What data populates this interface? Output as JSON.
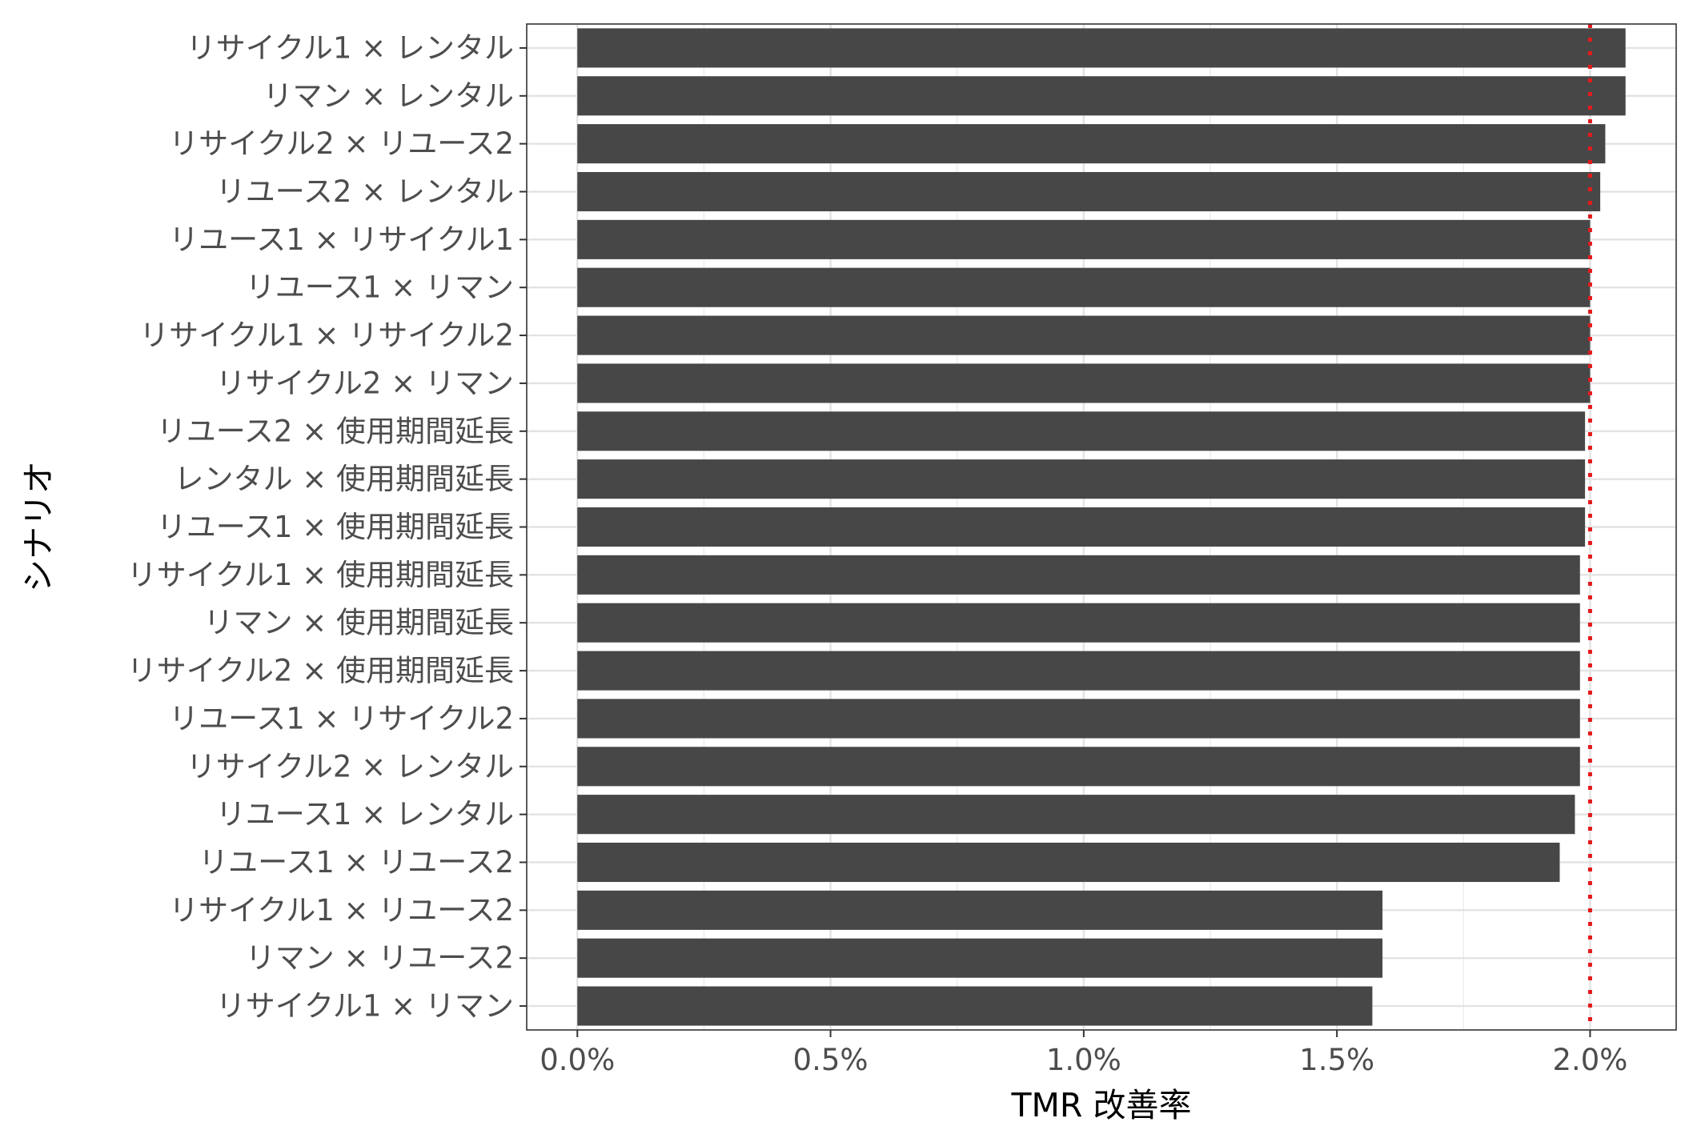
{
  "chart_data": {
    "type": "bar",
    "orientation": "horizontal",
    "xlabel": "TMR 改善率",
    "ylabel": "シナリオ",
    "xlim": [
      -0.001,
      0.0217
    ],
    "xticks": [
      0.0,
      0.005,
      0.01,
      0.015,
      0.02
    ],
    "xtick_labels": [
      "0.0%",
      "0.5%",
      "1.0%",
      "1.5%",
      "2.0%"
    ],
    "grid": true,
    "legend": "none",
    "reference_line": {
      "x": 0.02,
      "style": "dotted",
      "color": "#e41a1c"
    },
    "bar_color": "#474747",
    "categories": [
      "リサイクル1 × レンタル",
      "リマン × レンタル",
      "リサイクル2 × リユース2",
      "リユース2 × レンタル",
      "リユース1 × リサイクル1",
      "リユース1 × リマン",
      "リサイクル1 × リサイクル2",
      "リサイクル2 × リマン",
      "リユース2 × 使用期間延長",
      "レンタル × 使用期間延長",
      "リユース1 × 使用期間延長",
      "リサイクル1 × 使用期間延長",
      "リマン × 使用期間延長",
      "リサイクル2 × 使用期間延長",
      "リユース1 × リサイクル2",
      "リサイクル2 × レンタル",
      "リユース1 × レンタル",
      "リユース1 × リユース2",
      "リサイクル1 × リユース2",
      "リマン × リユース2",
      "リサイクル1 × リマン"
    ],
    "values": [
      0.0207,
      0.0207,
      0.0203,
      0.0202,
      0.02,
      0.02,
      0.02,
      0.02,
      0.0199,
      0.0199,
      0.0199,
      0.0198,
      0.0198,
      0.0198,
      0.0198,
      0.0198,
      0.0197,
      0.0194,
      0.0159,
      0.0159,
      0.0157
    ]
  }
}
